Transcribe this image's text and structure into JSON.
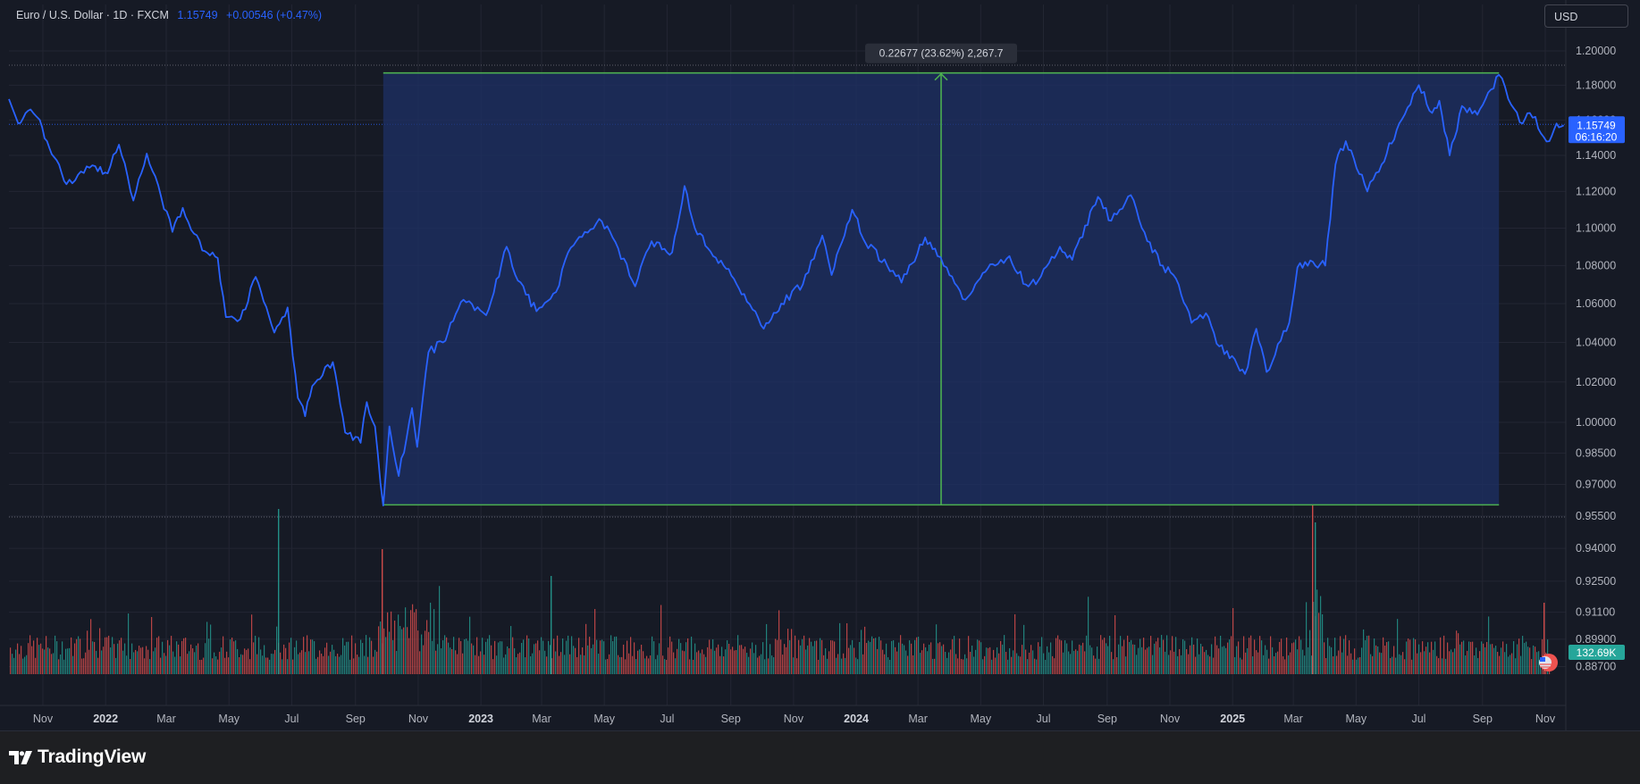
{
  "header": {
    "symbol": "Euro / U.S. Dollar · 1D · FXCM",
    "price": "1.15749",
    "change": "+0.00546 (+0.47%)"
  },
  "currency_button": "USD",
  "price_label": {
    "value": "1.15749",
    "countdown": "06:16:20"
  },
  "volume_label": "132.69K",
  "measure_label": "0.22677 (23.62%) 2,267.7",
  "footer": {
    "brand": "TradingView"
  },
  "colors": {
    "line": "#2962ff",
    "measure": "#4caf50",
    "measure_fill": "#1e3066",
    "vol_up": "#26a69a",
    "vol_down": "#ef5350",
    "background": "#161a25"
  },
  "chart_data": {
    "type": "line",
    "title": "Euro / U.S. Dollar · 1D · FXCM",
    "y_scale": "log",
    "ylim": [
      0.882,
      1.21
    ],
    "price_ticks": [
      "1.20000",
      "1.18000",
      "1.16000",
      "1.14000",
      "1.12000",
      "1.10000",
      "1.08000",
      "1.06000",
      "1.04000",
      "1.02000",
      "1.00000",
      "0.98500",
      "0.97000",
      "0.95500",
      "0.94000",
      "0.92500",
      "0.91100",
      "0.89900",
      "0.88700"
    ],
    "x_ticks": [
      {
        "date": "2021-11-01",
        "label": "Nov",
        "bold": false
      },
      {
        "date": "2022-01-01",
        "label": "2022",
        "bold": true
      },
      {
        "date": "2022-03-01",
        "label": "Mar",
        "bold": false
      },
      {
        "date": "2022-05-01",
        "label": "May",
        "bold": false
      },
      {
        "date": "2022-07-01",
        "label": "Jul",
        "bold": false
      },
      {
        "date": "2022-09-01",
        "label": "Sep",
        "bold": false
      },
      {
        "date": "2022-11-01",
        "label": "Nov",
        "bold": false
      },
      {
        "date": "2023-01-01",
        "label": "2023",
        "bold": true
      },
      {
        "date": "2023-03-01",
        "label": "Mar",
        "bold": false
      },
      {
        "date": "2023-05-01",
        "label": "May",
        "bold": false
      },
      {
        "date": "2023-07-01",
        "label": "Jul",
        "bold": false
      },
      {
        "date": "2023-09-01",
        "label": "Sep",
        "bold": false
      },
      {
        "date": "2023-11-01",
        "label": "Nov",
        "bold": false
      },
      {
        "date": "2024-01-01",
        "label": "2024",
        "bold": true
      },
      {
        "date": "2024-03-01",
        "label": "Mar",
        "bold": false
      },
      {
        "date": "2024-05-01",
        "label": "May",
        "bold": false
      },
      {
        "date": "2024-07-01",
        "label": "Jul",
        "bold": false
      },
      {
        "date": "2024-09-01",
        "label": "Sep",
        "bold": false
      },
      {
        "date": "2024-11-01",
        "label": "Nov",
        "bold": false
      },
      {
        "date": "2025-01-01",
        "label": "2025",
        "bold": true
      },
      {
        "date": "2025-03-01",
        "label": "Mar",
        "bold": false
      },
      {
        "date": "2025-05-01",
        "label": "May",
        "bold": false
      },
      {
        "date": "2025-07-01",
        "label": "Jul",
        "bold": false
      },
      {
        "date": "2025-09-01",
        "label": "Sep",
        "bold": false
      },
      {
        "date": "2025-11-01",
        "label": "Nov",
        "bold": false
      }
    ],
    "series": [
      {
        "name": "EURUSD",
        "x": [
          "2021-09-29",
          "2021-10-08",
          "2021-10-20",
          "2021-10-29",
          "2021-11-05",
          "2021-11-12",
          "2021-11-24",
          "2021-12-08",
          "2021-12-22",
          "2022-01-03",
          "2022-01-14",
          "2022-01-28",
          "2022-02-10",
          "2022-02-24",
          "2022-03-07",
          "2022-03-17",
          "2022-03-28",
          "2022-04-05",
          "2022-04-20",
          "2022-04-28",
          "2022-05-12",
          "2022-05-27",
          "2022-06-14",
          "2022-06-27",
          "2022-07-07",
          "2022-07-14",
          "2022-07-21",
          "2022-08-10",
          "2022-08-22",
          "2022-09-06",
          "2022-09-12",
          "2022-09-20",
          "2022-09-28",
          "2022-10-04",
          "2022-10-13",
          "2022-10-26",
          "2022-10-31",
          "2022-11-11",
          "2022-11-25",
          "2022-12-15",
          "2023-01-06",
          "2023-01-26",
          "2023-02-06",
          "2023-02-24",
          "2023-03-15",
          "2023-03-24",
          "2023-04-12",
          "2023-04-26",
          "2023-05-09",
          "2023-05-31",
          "2023-06-16",
          "2023-07-06",
          "2023-07-18",
          "2023-07-28",
          "2023-08-25",
          "2023-09-14",
          "2023-10-03",
          "2023-10-20",
          "2023-11-10",
          "2023-11-29",
          "2023-12-08",
          "2023-12-28",
          "2024-01-10",
          "2024-01-31",
          "2024-02-14",
          "2024-03-08",
          "2024-03-20",
          "2024-03-29",
          "2024-04-16",
          "2024-05-03",
          "2024-05-15",
          "2024-05-29",
          "2024-06-14",
          "2024-06-26",
          "2024-07-17",
          "2024-07-29",
          "2024-08-23",
          "2024-09-05",
          "2024-09-24",
          "2024-10-10",
          "2024-10-25",
          "2024-11-07",
          "2024-11-22",
          "2024-12-06",
          "2024-12-19",
          "2025-01-13",
          "2025-01-24",
          "2025-02-03",
          "2025-02-25",
          "2025-03-05",
          "2025-03-20",
          "2025-04-01",
          "2025-04-11",
          "2025-04-21",
          "2025-05-12",
          "2025-05-26",
          "2025-06-12",
          "2025-07-01",
          "2025-07-14",
          "2025-07-21",
          "2025-07-31",
          "2025-08-12",
          "2025-08-27",
          "2025-09-17",
          "2025-09-26",
          "2025-10-10",
          "2025-10-17",
          "2025-11-05",
          "2025-11-12",
          "2025-11-19"
        ],
        "values": [
          1.172,
          1.158,
          1.166,
          1.16,
          1.148,
          1.139,
          1.124,
          1.131,
          1.134,
          1.13,
          1.146,
          1.115,
          1.141,
          1.117,
          1.098,
          1.111,
          1.097,
          1.088,
          1.084,
          1.053,
          1.052,
          1.074,
          1.045,
          1.058,
          1.012,
          1.003,
          1.018,
          1.03,
          0.995,
          0.99,
          1.01,
          0.998,
          0.96,
          0.998,
          0.974,
          1.007,
          0.988,
          1.035,
          1.04,
          1.062,
          1.054,
          1.09,
          1.072,
          1.056,
          1.066,
          1.083,
          1.098,
          1.105,
          1.095,
          1.069,
          1.093,
          1.087,
          1.123,
          1.1,
          1.08,
          1.065,
          1.047,
          1.06,
          1.07,
          1.096,
          1.075,
          1.11,
          1.092,
          1.08,
          1.071,
          1.095,
          1.085,
          1.079,
          1.062,
          1.076,
          1.08,
          1.085,
          1.07,
          1.072,
          1.09,
          1.083,
          1.117,
          1.104,
          1.118,
          1.093,
          1.08,
          1.073,
          1.05,
          1.055,
          1.038,
          1.024,
          1.047,
          1.025,
          1.05,
          1.079,
          1.082,
          1.08,
          1.135,
          1.148,
          1.12,
          1.135,
          1.158,
          1.18,
          1.164,
          1.171,
          1.14,
          1.168,
          1.163,
          1.186,
          1.172,
          1.158,
          1.164,
          1.148,
          1.158,
          1.157
        ]
      }
    ],
    "volume_axis": {
      "label": "132.69K"
    },
    "measure": {
      "start": "2022-09-28",
      "end": "2025-09-17",
      "low": 0.9603,
      "high": 1.18707,
      "label": "0.22677 (23.62%) 2,267.7"
    }
  }
}
